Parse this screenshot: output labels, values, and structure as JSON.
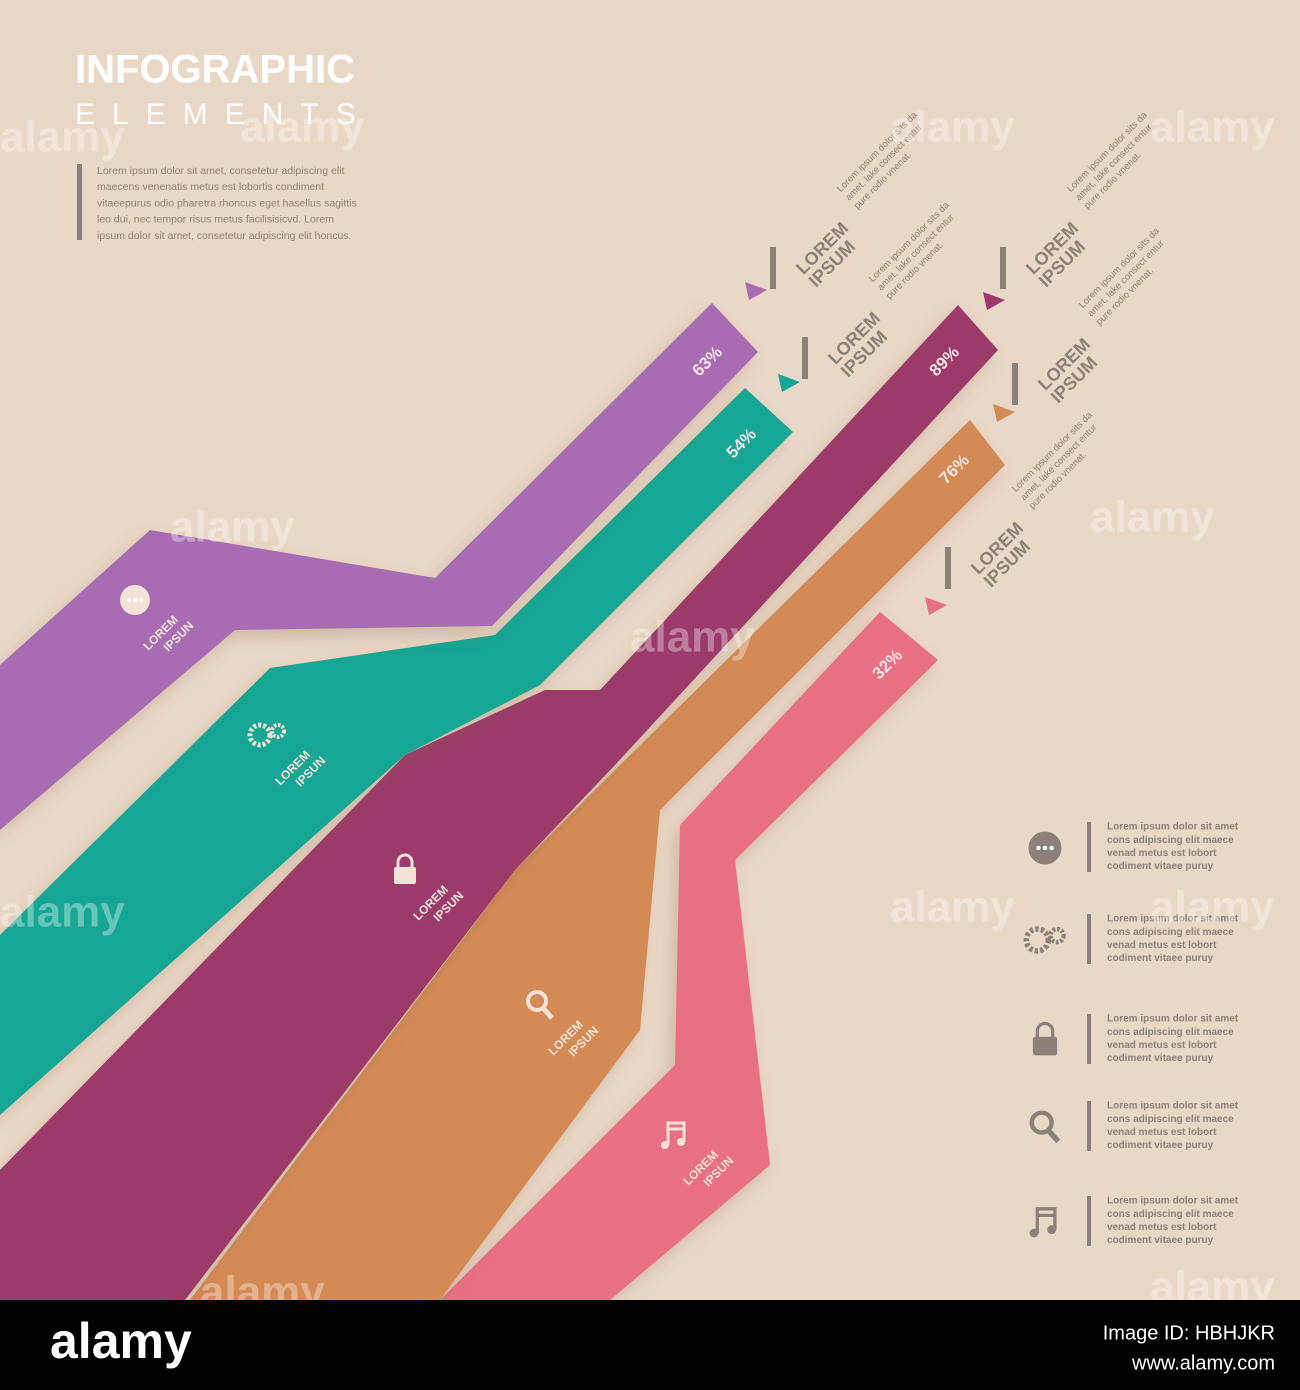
{
  "header": {
    "title": "INFOGRAPHIC",
    "subtitle": "ELEMENTS",
    "body": [
      "Lorem ipsum dolor sit amet, consetetur adipiscing elit",
      "maecens venenatis metus est lobortis condiment",
      "vitaeepurus odio pharetra rhoncus eget hasellus sagittis",
      "leo dui, nec tempor risus metus facilisisicvd. Lorem",
      "ipsum dolor sit amet, consetetur adipiscing elit honcus."
    ]
  },
  "ribbons": [
    {
      "percent": "63%",
      "label": [
        "LOREM",
        "IPSUN"
      ],
      "callout_title": [
        "LOREM",
        "IPSUM"
      ],
      "callout_text": [
        "Lorem ipsum dolor sits da",
        "amet, lake consect entur",
        "pure rodio vnenat."
      ]
    },
    {
      "percent": "54%",
      "label": [
        "LOREM",
        "IPSUN"
      ],
      "callout_title": [
        "LOREM",
        "IPSUM"
      ],
      "callout_text": [
        "Lorem ipsum dolor sits da",
        "amet, lake consect entur",
        "pure rodio vnenat."
      ]
    },
    {
      "percent": "89%",
      "label": [
        "LOREM",
        "IPSUN"
      ],
      "callout_title": [
        "LOREM",
        "IPSUM"
      ],
      "callout_text": [
        "Lorem ipsum dolor sits da",
        "amet, lake consect entur",
        "pure rodio vnenat."
      ]
    },
    {
      "percent": "76%",
      "label": [
        "LOREM",
        "IPSUN"
      ],
      "callout_title": [
        "LOREM",
        "IPSUM"
      ],
      "callout_text": [
        "Lorem ipsum dolor sits da",
        "amet, lake consect entur",
        "pure rodio vnenat."
      ]
    },
    {
      "percent": "32%",
      "label": [
        "LOREM",
        "IPSUN"
      ],
      "callout_title": [
        "LOREM",
        "IPSUM"
      ],
      "callout_text": [
        "Lorem ipsum dolor sits da",
        "amet, lake consect entur",
        "pure rodio vnenat."
      ]
    }
  ],
  "legend": [
    {
      "lines": [
        "Lorem ipsum dolor sit amet",
        "cons adipiscing elit maece",
        "venad metus est lobort",
        "codiment vitaee puruy"
      ]
    },
    {
      "lines": [
        "Lorem ipsum dolor sit amet",
        "cons adipiscing elit maece",
        "venad metus est lobort",
        "codiment vitaee puruy"
      ]
    },
    {
      "lines": [
        "Lorem ipsum dolor sit amet",
        "cons adipiscing elit maece",
        "venad metus est lobort",
        "codiment vitaee puruy"
      ]
    },
    {
      "lines": [
        "Lorem ipsum dolor sit amet",
        "cons adipiscing elit maece",
        "venad metus est lobort",
        "codiment vitaee puruy"
      ]
    },
    {
      "lines": [
        "Lorem ipsum dolor sit amet",
        "cons adipiscing elit maece",
        "venad metus est lobort",
        "codiment vitaee puruy"
      ]
    }
  ],
  "watermark": "alamy",
  "footer": {
    "logo": "alamy",
    "image_id": "Image ID: HBHJKR",
    "url": "www.alamy.com"
  }
}
